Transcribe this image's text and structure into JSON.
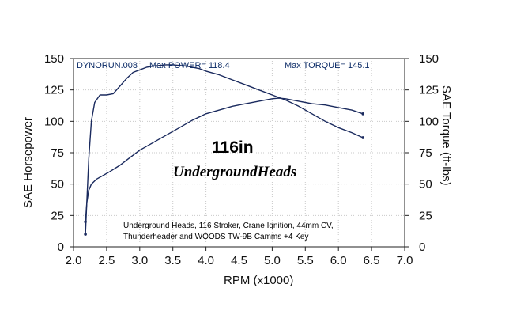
{
  "chart_data": {
    "type": "line",
    "xlabel": "RPM (x1000)",
    "ylabel_left": "SAE Horsepower",
    "ylabel_right": "SAE Torque (ft-lbs)",
    "xlim": [
      2.0,
      7.0
    ],
    "ylim": [
      0,
      150
    ],
    "x_ticks": [
      "2.0",
      "2.5",
      "3.0",
      "3.5",
      "4.0",
      "4.5",
      "5.0",
      "5.5",
      "6.0",
      "6.5",
      "7.0"
    ],
    "y_ticks_left": [
      "0",
      "25",
      "50",
      "75",
      "100",
      "125",
      "150"
    ],
    "y_ticks_right": [
      "0",
      "25",
      "50",
      "75",
      "100",
      "125",
      "150"
    ],
    "grid": true,
    "header": {
      "run": "DYNORUN.008",
      "max_power": "Max POWER= 118.4",
      "max_torque": "Max TORQUE= 145.1"
    },
    "headline": "116in",
    "brand": "UndergroundHeads",
    "notes": [
      "Underground Heads, 116 Stroker, Crane Ignition, 44mm CV,",
      "Thunderheader and WOODS TW-9B Camms +4 Key"
    ],
    "line_color": "#1a2a5e",
    "series": [
      {
        "key": "torque",
        "points": [
          [
            2.18,
            10
          ],
          [
            2.2,
            35
          ],
          [
            2.23,
            70
          ],
          [
            2.27,
            100
          ],
          [
            2.32,
            115
          ],
          [
            2.4,
            121
          ],
          [
            2.5,
            121
          ],
          [
            2.6,
            122
          ],
          [
            2.7,
            128
          ],
          [
            2.8,
            134
          ],
          [
            2.9,
            139
          ],
          [
            3.0,
            141
          ],
          [
            3.1,
            143
          ],
          [
            3.2,
            144
          ],
          [
            3.3,
            144.5
          ],
          [
            3.4,
            145
          ],
          [
            3.5,
            145
          ],
          [
            3.6,
            144.5
          ],
          [
            3.7,
            144
          ],
          [
            3.8,
            143
          ],
          [
            3.9,
            142
          ],
          [
            4.0,
            140
          ],
          [
            4.2,
            137
          ],
          [
            4.4,
            133
          ],
          [
            4.6,
            129
          ],
          [
            4.8,
            125
          ],
          [
            5.0,
            121
          ],
          [
            5.2,
            117
          ],
          [
            5.4,
            112
          ],
          [
            5.6,
            106
          ],
          [
            5.8,
            100
          ],
          [
            6.0,
            95
          ],
          [
            6.2,
            91
          ],
          [
            6.37,
            87
          ]
        ]
      },
      {
        "key": "horsepower",
        "points": [
          [
            2.18,
            20
          ],
          [
            2.2,
            35
          ],
          [
            2.23,
            45
          ],
          [
            2.27,
            50
          ],
          [
            2.35,
            54
          ],
          [
            2.45,
            57
          ],
          [
            2.55,
            60
          ],
          [
            2.7,
            65
          ],
          [
            2.85,
            71
          ],
          [
            3.0,
            77
          ],
          [
            3.2,
            83
          ],
          [
            3.4,
            89
          ],
          [
            3.6,
            95
          ],
          [
            3.8,
            101
          ],
          [
            4.0,
            106
          ],
          [
            4.2,
            109
          ],
          [
            4.4,
            112
          ],
          [
            4.6,
            114
          ],
          [
            4.8,
            116
          ],
          [
            5.0,
            118
          ],
          [
            5.1,
            118.4
          ],
          [
            5.2,
            118
          ],
          [
            5.4,
            116
          ],
          [
            5.6,
            114
          ],
          [
            5.8,
            113
          ],
          [
            6.0,
            111
          ],
          [
            6.2,
            109
          ],
          [
            6.37,
            106
          ]
        ]
      }
    ]
  }
}
